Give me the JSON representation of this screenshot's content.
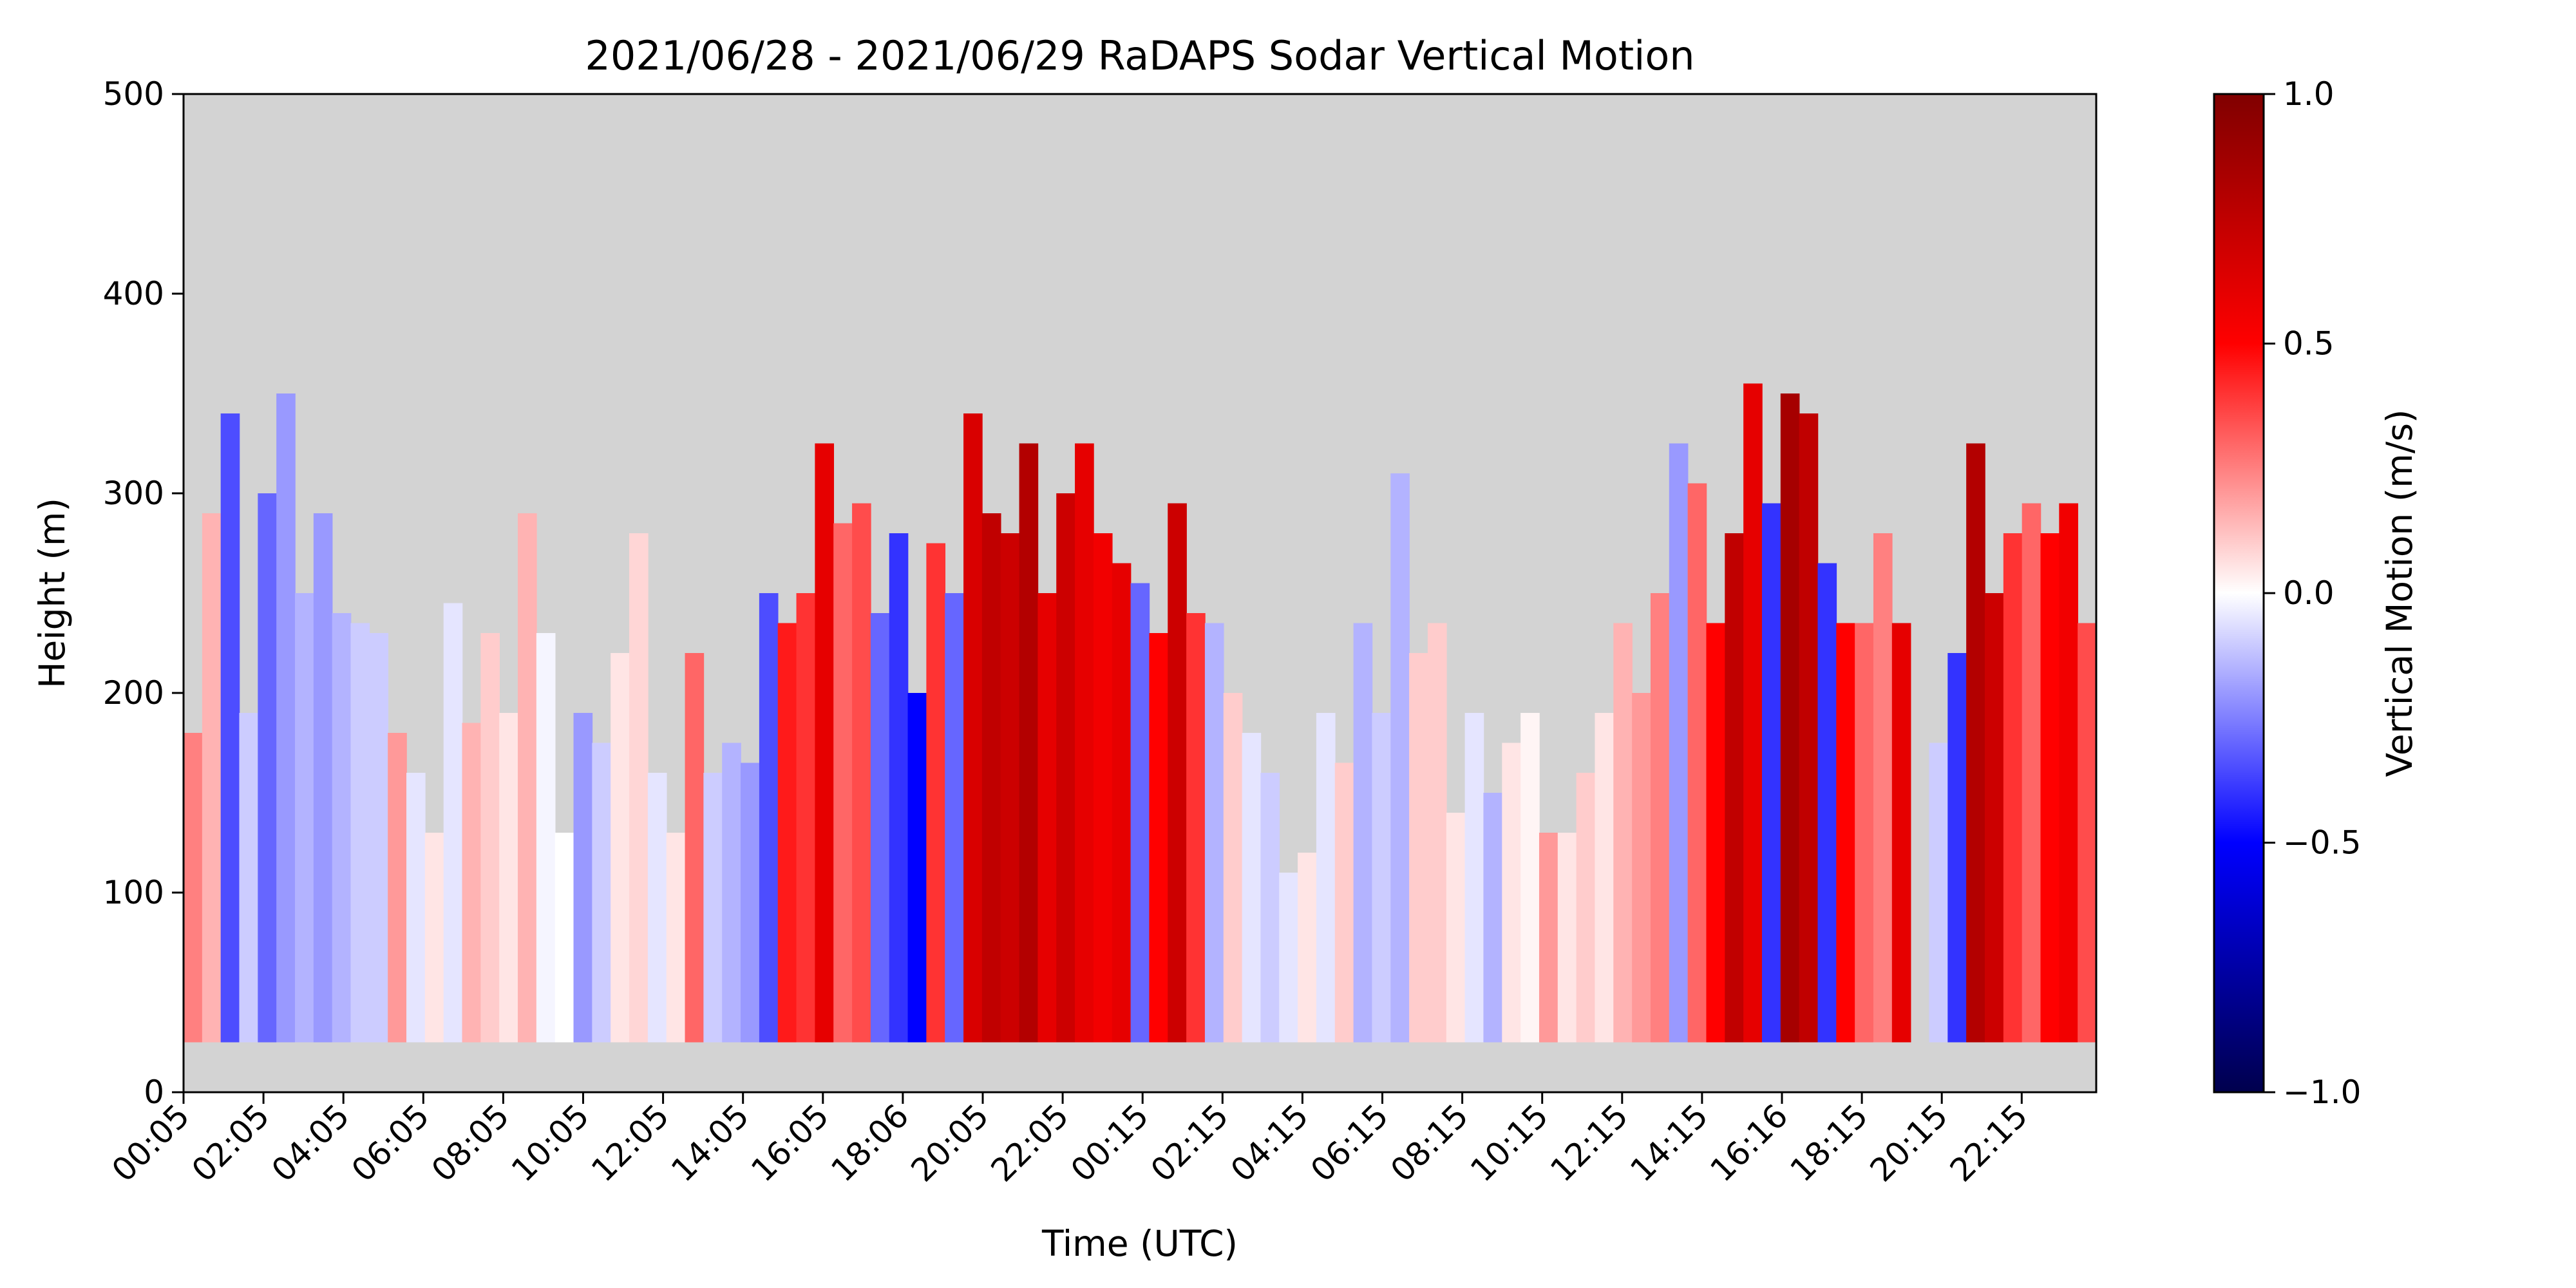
{
  "chart_data": {
    "type": "heatmap",
    "title": "2021/06/28 - 2021/06/29 RaDAPS Sodar Vertical Motion",
    "xlabel": "Time (UTC)",
    "ylabel": "Height (m)",
    "ylim": [
      0,
      500
    ],
    "yticks": [
      "0",
      "100",
      "200",
      "300",
      "400",
      "500"
    ],
    "xticks": [
      "00:05",
      "02:05",
      "04:05",
      "06:05",
      "08:05",
      "10:05",
      "12:05",
      "14:05",
      "16:05",
      "18:06",
      "20:05",
      "22:05",
      "00:15",
      "02:15",
      "04:15",
      "06:15",
      "08:15",
      "10:15",
      "12:15",
      "14:15",
      "16:16",
      "18:15",
      "20:15",
      "22:15"
    ],
    "colorbar": {
      "label": "Vertical Motion (m/s)",
      "range": [
        -1.0,
        1.0
      ],
      "ticks": [
        "−1.0",
        "−0.5",
        "0.0",
        "0.5",
        "1.0"
      ],
      "colormap": "seismic",
      "colors": [
        "#00004d",
        "#0000ff",
        "#ffffff",
        "#ff0000",
        "#800000"
      ]
    },
    "missing_color": "#d3d3d3",
    "data_bottom_height": 25,
    "columns_note_free": true,
    "profiles": [
      {
        "top": 180,
        "v": 0.25
      },
      {
        "top": 290,
        "v": 0.15
      },
      {
        "top": 340,
        "v": -0.35
      },
      {
        "top": 190,
        "v": -0.1
      },
      {
        "top": 300,
        "v": -0.3
      },
      {
        "top": 350,
        "v": -0.2
      },
      {
        "top": 250,
        "v": -0.15
      },
      {
        "top": 290,
        "v": -0.2
      },
      {
        "top": 240,
        "v": -0.15
      },
      {
        "top": 235,
        "v": -0.1
      },
      {
        "top": 230,
        "v": -0.1
      },
      {
        "top": 180,
        "v": 0.2
      },
      {
        "top": 160,
        "v": -0.05
      },
      {
        "top": 130,
        "v": 0.05
      },
      {
        "top": 245,
        "v": -0.05
      },
      {
        "top": 185,
        "v": 0.15
      },
      {
        "top": 230,
        "v": 0.1
      },
      {
        "top": 190,
        "v": 0.05
      },
      {
        "top": 290,
        "v": 0.15
      },
      {
        "top": 230,
        "v": -0.02
      },
      {
        "top": 130,
        "v": 0.0
      },
      {
        "top": 190,
        "v": -0.2
      },
      {
        "top": 175,
        "v": -0.1
      },
      {
        "top": 220,
        "v": 0.05
      },
      {
        "top": 280,
        "v": 0.08
      },
      {
        "top": 160,
        "v": -0.05
      },
      {
        "top": 130,
        "v": 0.05
      },
      {
        "top": 220,
        "v": 0.3
      },
      {
        "top": 160,
        "v": -0.1
      },
      {
        "top": 175,
        "v": -0.15
      },
      {
        "top": 165,
        "v": -0.2
      },
      {
        "top": 250,
        "v": -0.35
      },
      {
        "top": 235,
        "v": 0.45
      },
      {
        "top": 250,
        "v": 0.4
      },
      {
        "top": 325,
        "v": 0.6
      },
      {
        "top": 285,
        "v": 0.3
      },
      {
        "top": 295,
        "v": 0.35
      },
      {
        "top": 240,
        "v": -0.3
      },
      {
        "top": 280,
        "v": -0.4
      },
      {
        "top": 200,
        "v": -0.5
      },
      {
        "top": 275,
        "v": 0.4
      },
      {
        "top": 250,
        "v": -0.3
      },
      {
        "top": 340,
        "v": 0.65
      },
      {
        "top": 290,
        "v": 0.75
      },
      {
        "top": 280,
        "v": 0.7
      },
      {
        "top": 325,
        "v": 0.8
      },
      {
        "top": 250,
        "v": 0.6
      },
      {
        "top": 300,
        "v": 0.7
      },
      {
        "top": 325,
        "v": 0.6
      },
      {
        "top": 280,
        "v": 0.55
      },
      {
        "top": 265,
        "v": 0.6
      },
      {
        "top": 255,
        "v": -0.3
      },
      {
        "top": 230,
        "v": 0.5
      },
      {
        "top": 295,
        "v": 0.7
      },
      {
        "top": 240,
        "v": 0.4
      },
      {
        "top": 235,
        "v": -0.15
      },
      {
        "top": 200,
        "v": 0.1
      },
      {
        "top": 180,
        "v": -0.05
      },
      {
        "top": 160,
        "v": -0.1
      },
      {
        "top": 110,
        "v": -0.05
      },
      {
        "top": 120,
        "v": 0.05
      },
      {
        "top": 190,
        "v": -0.05
      },
      {
        "top": 165,
        "v": 0.1
      },
      {
        "top": 235,
        "v": -0.15
      },
      {
        "top": 190,
        "v": -0.1
      },
      {
        "top": 310,
        "v": -0.15
      },
      {
        "top": 220,
        "v": 0.1
      },
      {
        "top": 235,
        "v": 0.1
      },
      {
        "top": 140,
        "v": 0.05
      },
      {
        "top": 190,
        "v": -0.05
      },
      {
        "top": 150,
        "v": -0.15
      },
      {
        "top": 175,
        "v": 0.05
      },
      {
        "top": 190,
        "v": 0.02
      },
      {
        "top": 130,
        "v": 0.2
      },
      {
        "top": 130,
        "v": 0.05
      },
      {
        "top": 160,
        "v": 0.1
      },
      {
        "top": 190,
        "v": 0.05
      },
      {
        "top": 235,
        "v": 0.15
      },
      {
        "top": 200,
        "v": 0.2
      },
      {
        "top": 250,
        "v": 0.25
      },
      {
        "top": 325,
        "v": -0.2
      },
      {
        "top": 305,
        "v": 0.3
      },
      {
        "top": 235,
        "v": 0.5
      },
      {
        "top": 280,
        "v": 0.75
      },
      {
        "top": 355,
        "v": 0.6
      },
      {
        "top": 295,
        "v": -0.4
      },
      {
        "top": 350,
        "v": 0.85
      },
      {
        "top": 340,
        "v": 0.75
      },
      {
        "top": 265,
        "v": -0.4
      },
      {
        "top": 235,
        "v": 0.5
      },
      {
        "top": 235,
        "v": 0.3
      },
      {
        "top": 280,
        "v": 0.25
      },
      {
        "top": 235,
        "v": 0.6
      },
      {
        "top": 0,
        "v": 0.0
      },
      {
        "top": 175,
        "v": -0.1
      },
      {
        "top": 220,
        "v": -0.4
      },
      {
        "top": 325,
        "v": 0.8
      },
      {
        "top": 250,
        "v": 0.7
      },
      {
        "top": 280,
        "v": 0.4
      },
      {
        "top": 295,
        "v": 0.3
      },
      {
        "top": 280,
        "v": 0.5
      },
      {
        "top": 295,
        "v": 0.55
      },
      {
        "top": 235,
        "v": 0.35
      }
    ]
  }
}
